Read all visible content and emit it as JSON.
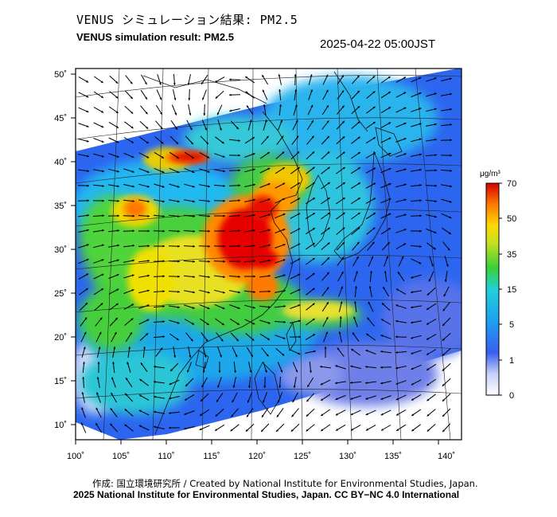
{
  "header": {
    "title_jp": "VENUS シミュレーション結果: PM2.5",
    "title_en": "VENUS simulation result: PM2.5",
    "timestamp": "2025-04-22 05:00JST"
  },
  "map": {
    "lon_ticks": [
      "100˚",
      "105˚",
      "110˚",
      "115˚",
      "120˚",
      "125˚",
      "130˚",
      "135˚",
      "140˚"
    ],
    "lat_ticks": [
      "50˚",
      "45˚",
      "40˚",
      "35˚",
      "30˚",
      "25˚",
      "20˚",
      "15˚",
      "10˚"
    ],
    "lon_range": [
      100,
      141
    ],
    "lat_range": [
      9,
      51
    ]
  },
  "colorbar": {
    "unit": "μg/m³",
    "levels": [
      "70",
      "50",
      "35",
      "15",
      "5",
      "1",
      "0"
    ],
    "colors": [
      "#d70000",
      "#ff8800",
      "#f2e600",
      "#38d038",
      "#22c2e8",
      "#2860f0",
      "#ffffff"
    ]
  },
  "footer": {
    "credit_line": "作成: 国立環境研究所 / Created by National Institute for Environmental Studies, Japan.",
    "copyright_line": "2025 National Institute for Environmental Studies, Japan. CC BY−NC 4.0 International"
  }
}
